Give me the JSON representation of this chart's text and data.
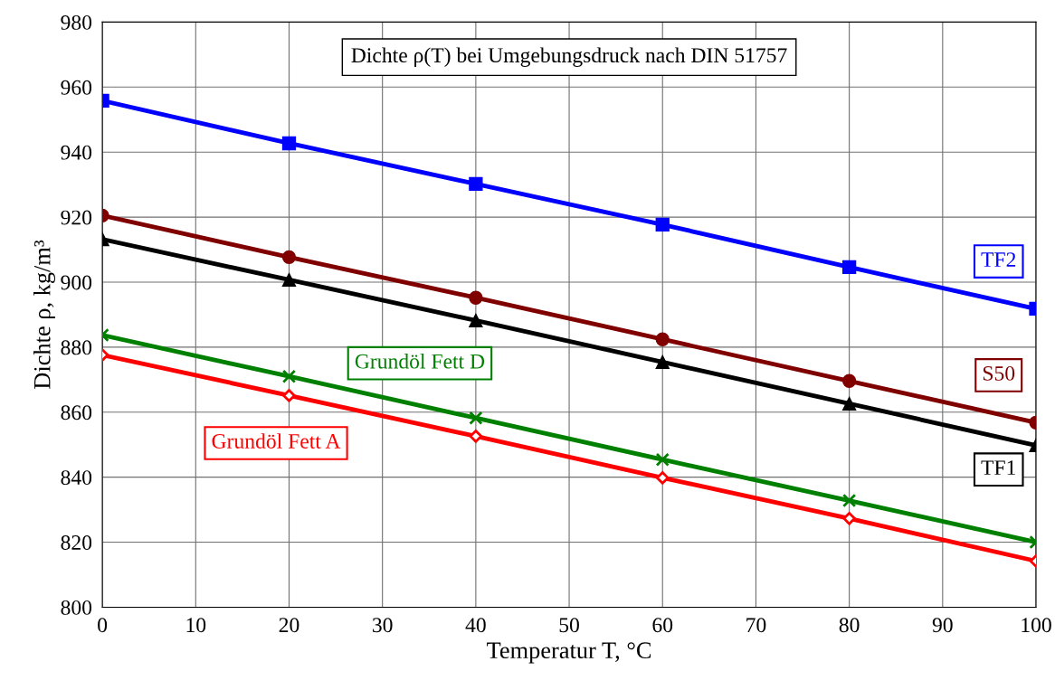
{
  "chart_data": {
    "type": "line",
    "title": "Dichte ρ(T) bei Umgebungsdruck nach DIN 51757",
    "xlabel": "Temperatur T, °C",
    "ylabel": "Dichte ρ, kg/m³",
    "x": [
      0,
      20,
      40,
      60,
      80,
      100
    ],
    "series": [
      {
        "name": "TF2",
        "color": "#0000ff",
        "marker": "square",
        "values": [
          955.8,
          942.7,
          930.2,
          917.7,
          904.6,
          891.8
        ]
      },
      {
        "name": "S50",
        "color": "#800000",
        "marker": "circle",
        "values": [
          920.5,
          907.7,
          895.2,
          882.4,
          869.6,
          856.8
        ]
      },
      {
        "name": "TF1",
        "color": "#000000",
        "marker": "triangle",
        "values": [
          913.2,
          900.7,
          888.2,
          875.4,
          862.6,
          849.8
        ]
      },
      {
        "name": "Grundöl Fett D",
        "color": "#008000",
        "marker": "cross",
        "values": [
          883.7,
          871.0,
          858.2,
          845.4,
          832.8,
          820.0
        ]
      },
      {
        "name": "Grundöl Fett A",
        "color": "#ff0000",
        "marker": "diamond",
        "values": [
          877.6,
          865.1,
          852.6,
          839.8,
          827.3,
          814.2
        ]
      }
    ],
    "xlim": [
      0,
      100
    ],
    "xticks": [
      0,
      10,
      20,
      30,
      40,
      50,
      60,
      70,
      80,
      90,
      100
    ],
    "ylim": [
      800,
      980
    ],
    "yticks": [
      800,
      820,
      840,
      860,
      880,
      900,
      920,
      940,
      960,
      980
    ],
    "grid": true,
    "legend": false,
    "line_style": "solid"
  }
}
